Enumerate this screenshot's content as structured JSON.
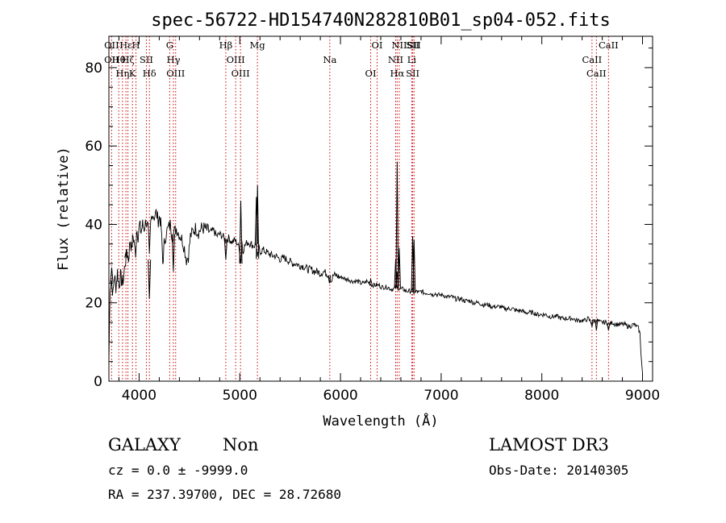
{
  "chart_data": {
    "type": "line",
    "title": "spec-56722-HD154740N282810B01_sp04-052.fits",
    "xlabel": "Wavelength (Å)",
    "ylabel": "Flux (relative)",
    "xlim": [
      3700,
      9100
    ],
    "ylim": [
      0,
      88
    ],
    "x_ticks": [
      4000,
      5000,
      6000,
      7000,
      8000,
      9000
    ],
    "y_ticks": [
      0,
      20,
      40,
      60,
      80
    ],
    "series": [
      {
        "name": "spectrum",
        "points": [
          [
            3700,
            5
          ],
          [
            3712,
            24
          ],
          [
            3725,
            26
          ],
          [
            3740,
            22
          ],
          [
            3755,
            27
          ],
          [
            3770,
            24
          ],
          [
            3785,
            28
          ],
          [
            3800,
            24
          ],
          [
            3815,
            27
          ],
          [
            3830,
            25
          ],
          [
            3845,
            26
          ],
          [
            3860,
            30
          ],
          [
            3880,
            33
          ],
          [
            3895,
            31
          ],
          [
            3910,
            36
          ],
          [
            3925,
            34
          ],
          [
            3940,
            37
          ],
          [
            3955,
            35
          ],
          [
            3965,
            31
          ],
          [
            3975,
            39
          ],
          [
            3990,
            37
          ],
          [
            4005,
            40
          ],
          [
            4020,
            38
          ],
          [
            4035,
            40
          ],
          [
            4050,
            39
          ],
          [
            4070,
            41
          ],
          [
            4090,
            39
          ],
          [
            4102,
            31
          ],
          [
            4115,
            40
          ],
          [
            4130,
            43
          ],
          [
            4150,
            42
          ],
          [
            4170,
            43
          ],
          [
            4190,
            41
          ],
          [
            4205,
            42
          ],
          [
            4220,
            39
          ],
          [
            4235,
            30
          ],
          [
            4250,
            35
          ],
          [
            4270,
            38
          ],
          [
            4290,
            39
          ],
          [
            4310,
            40
          ],
          [
            4330,
            37
          ],
          [
            4350,
            38
          ],
          [
            4370,
            39
          ],
          [
            4390,
            38
          ],
          [
            4410,
            37
          ],
          [
            4430,
            36
          ],
          [
            4450,
            34
          ],
          [
            4470,
            31
          ],
          [
            4490,
            32
          ],
          [
            4510,
            37
          ],
          [
            4530,
            38
          ],
          [
            4560,
            39
          ],
          [
            4590,
            38
          ],
          [
            4620,
            39
          ],
          [
            4650,
            39
          ],
          [
            4680,
            38.5
          ],
          [
            4710,
            38
          ],
          [
            4740,
            38.5
          ],
          [
            4770,
            37
          ],
          [
            4800,
            37.5
          ],
          [
            4830,
            37
          ],
          [
            4860,
            36
          ],
          [
            4890,
            36.5
          ],
          [
            4920,
            35.5
          ],
          [
            4950,
            36
          ],
          [
            4980,
            35
          ],
          [
            5000,
            33
          ],
          [
            5010,
            30
          ],
          [
            5020,
            36
          ],
          [
            5030,
            33
          ],
          [
            5040,
            34
          ],
          [
            5060,
            35
          ],
          [
            5080,
            35.5
          ],
          [
            5110,
            35
          ],
          [
            5140,
            34.5
          ],
          [
            5165,
            35
          ],
          [
            5175,
            31
          ],
          [
            5190,
            34
          ],
          [
            5200,
            33
          ],
          [
            5230,
            33.5
          ],
          [
            5260,
            33
          ],
          [
            5290,
            32.5
          ],
          [
            5320,
            32
          ],
          [
            5350,
            32
          ],
          [
            5380,
            31.5
          ],
          [
            5410,
            31
          ],
          [
            5440,
            31.5
          ],
          [
            5470,
            31
          ],
          [
            5500,
            30.5
          ],
          [
            5530,
            30
          ],
          [
            5560,
            30
          ],
          [
            5590,
            29.5
          ],
          [
            5620,
            29.5
          ],
          [
            5650,
            29
          ],
          [
            5680,
            28.5
          ],
          [
            5710,
            28.5
          ],
          [
            5740,
            28
          ],
          [
            5770,
            28
          ],
          [
            5800,
            27.5
          ],
          [
            5830,
            28
          ],
          [
            5860,
            27.5
          ],
          [
            5890,
            27
          ],
          [
            5910,
            25.5
          ],
          [
            5930,
            27
          ],
          [
            5960,
            27
          ],
          [
            5990,
            26.5
          ],
          [
            6020,
            26.5
          ],
          [
            6050,
            26
          ],
          [
            6080,
            26
          ],
          [
            6110,
            25.5
          ],
          [
            6140,
            25.5
          ],
          [
            6170,
            25.5
          ],
          [
            6200,
            25
          ],
          [
            6230,
            25
          ],
          [
            6260,
            25.5
          ],
          [
            6290,
            25
          ],
          [
            6320,
            24.5
          ],
          [
            6350,
            24.5
          ],
          [
            6380,
            24.5
          ],
          [
            6410,
            24
          ],
          [
            6440,
            24
          ],
          [
            6470,
            24
          ],
          [
            6500,
            23.5
          ],
          [
            6530,
            23.5
          ],
          [
            6560,
            24
          ],
          [
            6590,
            23.5
          ],
          [
            6620,
            23.5
          ],
          [
            6650,
            23
          ],
          [
            6680,
            23
          ],
          [
            6710,
            23
          ],
          [
            6740,
            22.5
          ],
          [
            6760,
            23
          ],
          [
            6775,
            22.5
          ],
          [
            6800,
            23
          ],
          [
            6830,
            22.5
          ],
          [
            6860,
            22.5
          ],
          [
            6890,
            22.5
          ],
          [
            6920,
            22
          ],
          [
            6935,
            22.5
          ],
          [
            6960,
            22
          ],
          [
            6990,
            22
          ],
          [
            7020,
            22
          ],
          [
            7050,
            21.5
          ],
          [
            7080,
            21.5
          ],
          [
            7110,
            21.5
          ],
          [
            7140,
            21
          ],
          [
            7170,
            21
          ],
          [
            7200,
            21
          ],
          [
            7230,
            20.5
          ],
          [
            7260,
            20.5
          ],
          [
            7290,
            20.5
          ],
          [
            7320,
            20
          ],
          [
            7350,
            20
          ],
          [
            7380,
            20
          ],
          [
            7410,
            19.5
          ],
          [
            7440,
            19.5
          ],
          [
            7470,
            19.5
          ],
          [
            7500,
            19
          ],
          [
            7530,
            19
          ],
          [
            7560,
            19
          ],
          [
            7590,
            19
          ],
          [
            7620,
            18.5
          ],
          [
            7650,
            18.5
          ],
          [
            7680,
            18.5
          ],
          [
            7710,
            18.5
          ],
          [
            7740,
            18
          ],
          [
            7770,
            18
          ],
          [
            7800,
            18
          ],
          [
            7830,
            17.5
          ],
          [
            7860,
            17.5
          ],
          [
            7890,
            17.5
          ],
          [
            7920,
            17.5
          ],
          [
            7950,
            17
          ],
          [
            7980,
            17
          ],
          [
            8010,
            17
          ],
          [
            8040,
            17
          ],
          [
            8070,
            16.5
          ],
          [
            8100,
            16.5
          ],
          [
            8130,
            16.5
          ],
          [
            8160,
            16.5
          ],
          [
            8190,
            16
          ],
          [
            8220,
            16
          ],
          [
            8250,
            16
          ],
          [
            8280,
            16
          ],
          [
            8310,
            16
          ],
          [
            8340,
            15.5
          ],
          [
            8370,
            15.5
          ],
          [
            8400,
            15.5
          ],
          [
            8430,
            15.5
          ],
          [
            8460,
            16
          ],
          [
            8490,
            15
          ],
          [
            8520,
            15.5
          ],
          [
            8550,
            15.5
          ],
          [
            8580,
            15
          ],
          [
            8610,
            15
          ],
          [
            8640,
            15
          ],
          [
            8670,
            14.5
          ],
          [
            8700,
            15
          ],
          [
            8730,
            14.5
          ],
          [
            8760,
            14.5
          ],
          [
            8790,
            14.5
          ],
          [
            8820,
            14.5
          ],
          [
            8850,
            14
          ],
          [
            8880,
            14
          ],
          [
            8910,
            14.5
          ],
          [
            8940,
            14
          ],
          [
            8960,
            13.5
          ],
          [
            8975,
            12
          ],
          [
            8990,
            5
          ],
          [
            9000,
            2
          ]
        ],
        "spikes": [
          [
            3728,
            29
          ],
          [
            3870,
            33
          ],
          [
            4102,
            21
          ],
          [
            4340,
            28
          ],
          [
            4861,
            31
          ],
          [
            5010,
            46
          ],
          [
            5165,
            47
          ],
          [
            5176,
            50
          ],
          [
            5890,
            25
          ],
          [
            6300,
            26
          ],
          [
            6548,
            31
          ],
          [
            6562,
            28
          ],
          [
            6563,
            56
          ],
          [
            6584,
            34
          ],
          [
            6717,
            37
          ],
          [
            6731,
            36
          ],
          [
            8498,
            14
          ],
          [
            8542,
            13
          ],
          [
            8662,
            13
          ]
        ]
      }
    ],
    "reference_lines": [
      {
        "wavelength": 3727,
        "labels": [
          "OII",
          "OII"
        ]
      },
      {
        "wavelength": 3798,
        "labels": [
          "Hθ"
        ]
      },
      {
        "wavelength": 3835,
        "labels": [
          "Hη"
        ]
      },
      {
        "wavelength": 3869,
        "labels": [
          "Hε"
        ]
      },
      {
        "wavelength": 3889,
        "labels": [
          "Hζ"
        ]
      },
      {
        "wavelength": 3934,
        "labels": [
          "K"
        ]
      },
      {
        "wavelength": 3969,
        "labels": [
          "H"
        ]
      },
      {
        "wavelength": 4072,
        "labels": [
          "SII"
        ]
      },
      {
        "wavelength": 4102,
        "labels": [
          "Hδ"
        ]
      },
      {
        "wavelength": 4304,
        "labels": [
          "G"
        ]
      },
      {
        "wavelength": 4341,
        "labels": [
          "Hγ"
        ]
      },
      {
        "wavelength": 4363,
        "labels": [
          "OIII"
        ]
      },
      {
        "wavelength": 4861,
        "labels": [
          "Hβ"
        ]
      },
      {
        "wavelength": 4959,
        "labels": [
          "OIII"
        ]
      },
      {
        "wavelength": 5007,
        "labels": [
          "OIII"
        ]
      },
      {
        "wavelength": 5175,
        "labels": [
          "Mg"
        ]
      },
      {
        "wavelength": 5894,
        "labels": [
          "Na"
        ]
      },
      {
        "wavelength": 6300,
        "labels": [
          "OI"
        ]
      },
      {
        "wavelength": 6364,
        "labels": [
          "OI"
        ]
      },
      {
        "wavelength": 6548,
        "labels": [
          "NII"
        ]
      },
      {
        "wavelength": 6563,
        "labels": [
          "Hα"
        ]
      },
      {
        "wavelength": 6584,
        "labels": [
          "NII"
        ]
      },
      {
        "wavelength": 6708,
        "labels": [
          "Li"
        ]
      },
      {
        "wavelength": 6717,
        "labels": [
          "SII",
          "SII"
        ]
      },
      {
        "wavelength": 6731,
        "labels": [
          "SII"
        ]
      },
      {
        "wavelength": 8498,
        "labels": [
          "CaII"
        ]
      },
      {
        "wavelength": 8542,
        "labels": [
          "CaII"
        ]
      },
      {
        "wavelength": 8662,
        "labels": [
          "CaII"
        ]
      }
    ],
    "line_color": "#000000",
    "reference_line_color": "#cc0000",
    "grid": false,
    "legend": "none"
  },
  "footer": {
    "class_label": "GALAXY",
    "subclass_label": "Non",
    "survey_label": "LAMOST DR3",
    "redshift_text": "cz = 0.0 ± -9999.0",
    "obs_date_text": "Obs-Date: 20140305",
    "coords_text": "RA = 237.39700, DEC =  28.72680"
  }
}
